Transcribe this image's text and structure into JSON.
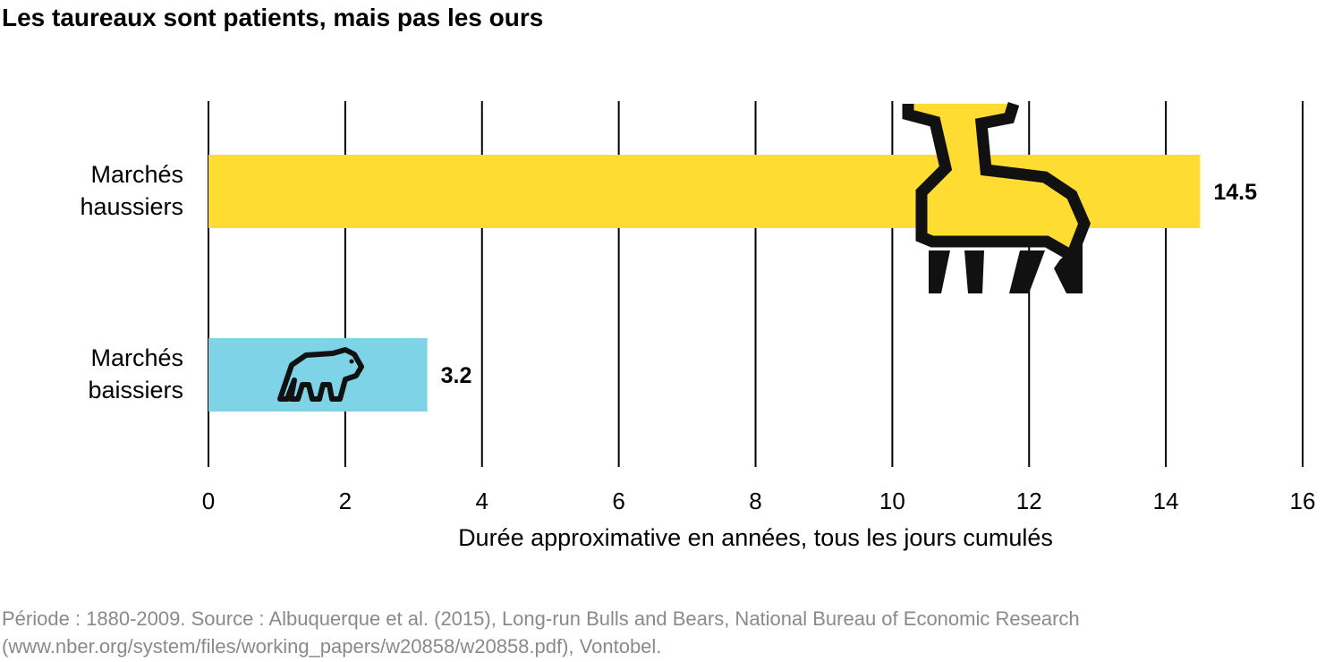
{
  "title": "Les taureaux sont patients, mais pas les ours",
  "chart_data": {
    "type": "bar",
    "orientation": "horizontal",
    "categories": [
      [
        "Marchés",
        "haussiers"
      ],
      [
        "Marchés",
        "baissiers"
      ]
    ],
    "values": [
      14.5,
      3.2
    ],
    "value_labels": [
      "14.5",
      "3.2"
    ],
    "xlabel": "Durée approximative en années, tous les jours cumulés",
    "ylabel": "",
    "xlim": [
      0,
      16
    ],
    "xticks": [
      0,
      2,
      4,
      6,
      8,
      10,
      12,
      14,
      16
    ],
    "grid": "vertical",
    "colors": [
      "#FFDC32",
      "#7FD3E6"
    ],
    "icons": [
      "bull-icon",
      "bear-icon"
    ]
  },
  "source_lines": [
    "Période : 1880-2009. Source : Albuquerque et al. (2015), Long-run Bulls and Bears, National Bureau of Economic Research",
    "(www.nber.org/system/files/working_papers/w20858/w20858.pdf), Vontobel."
  ]
}
